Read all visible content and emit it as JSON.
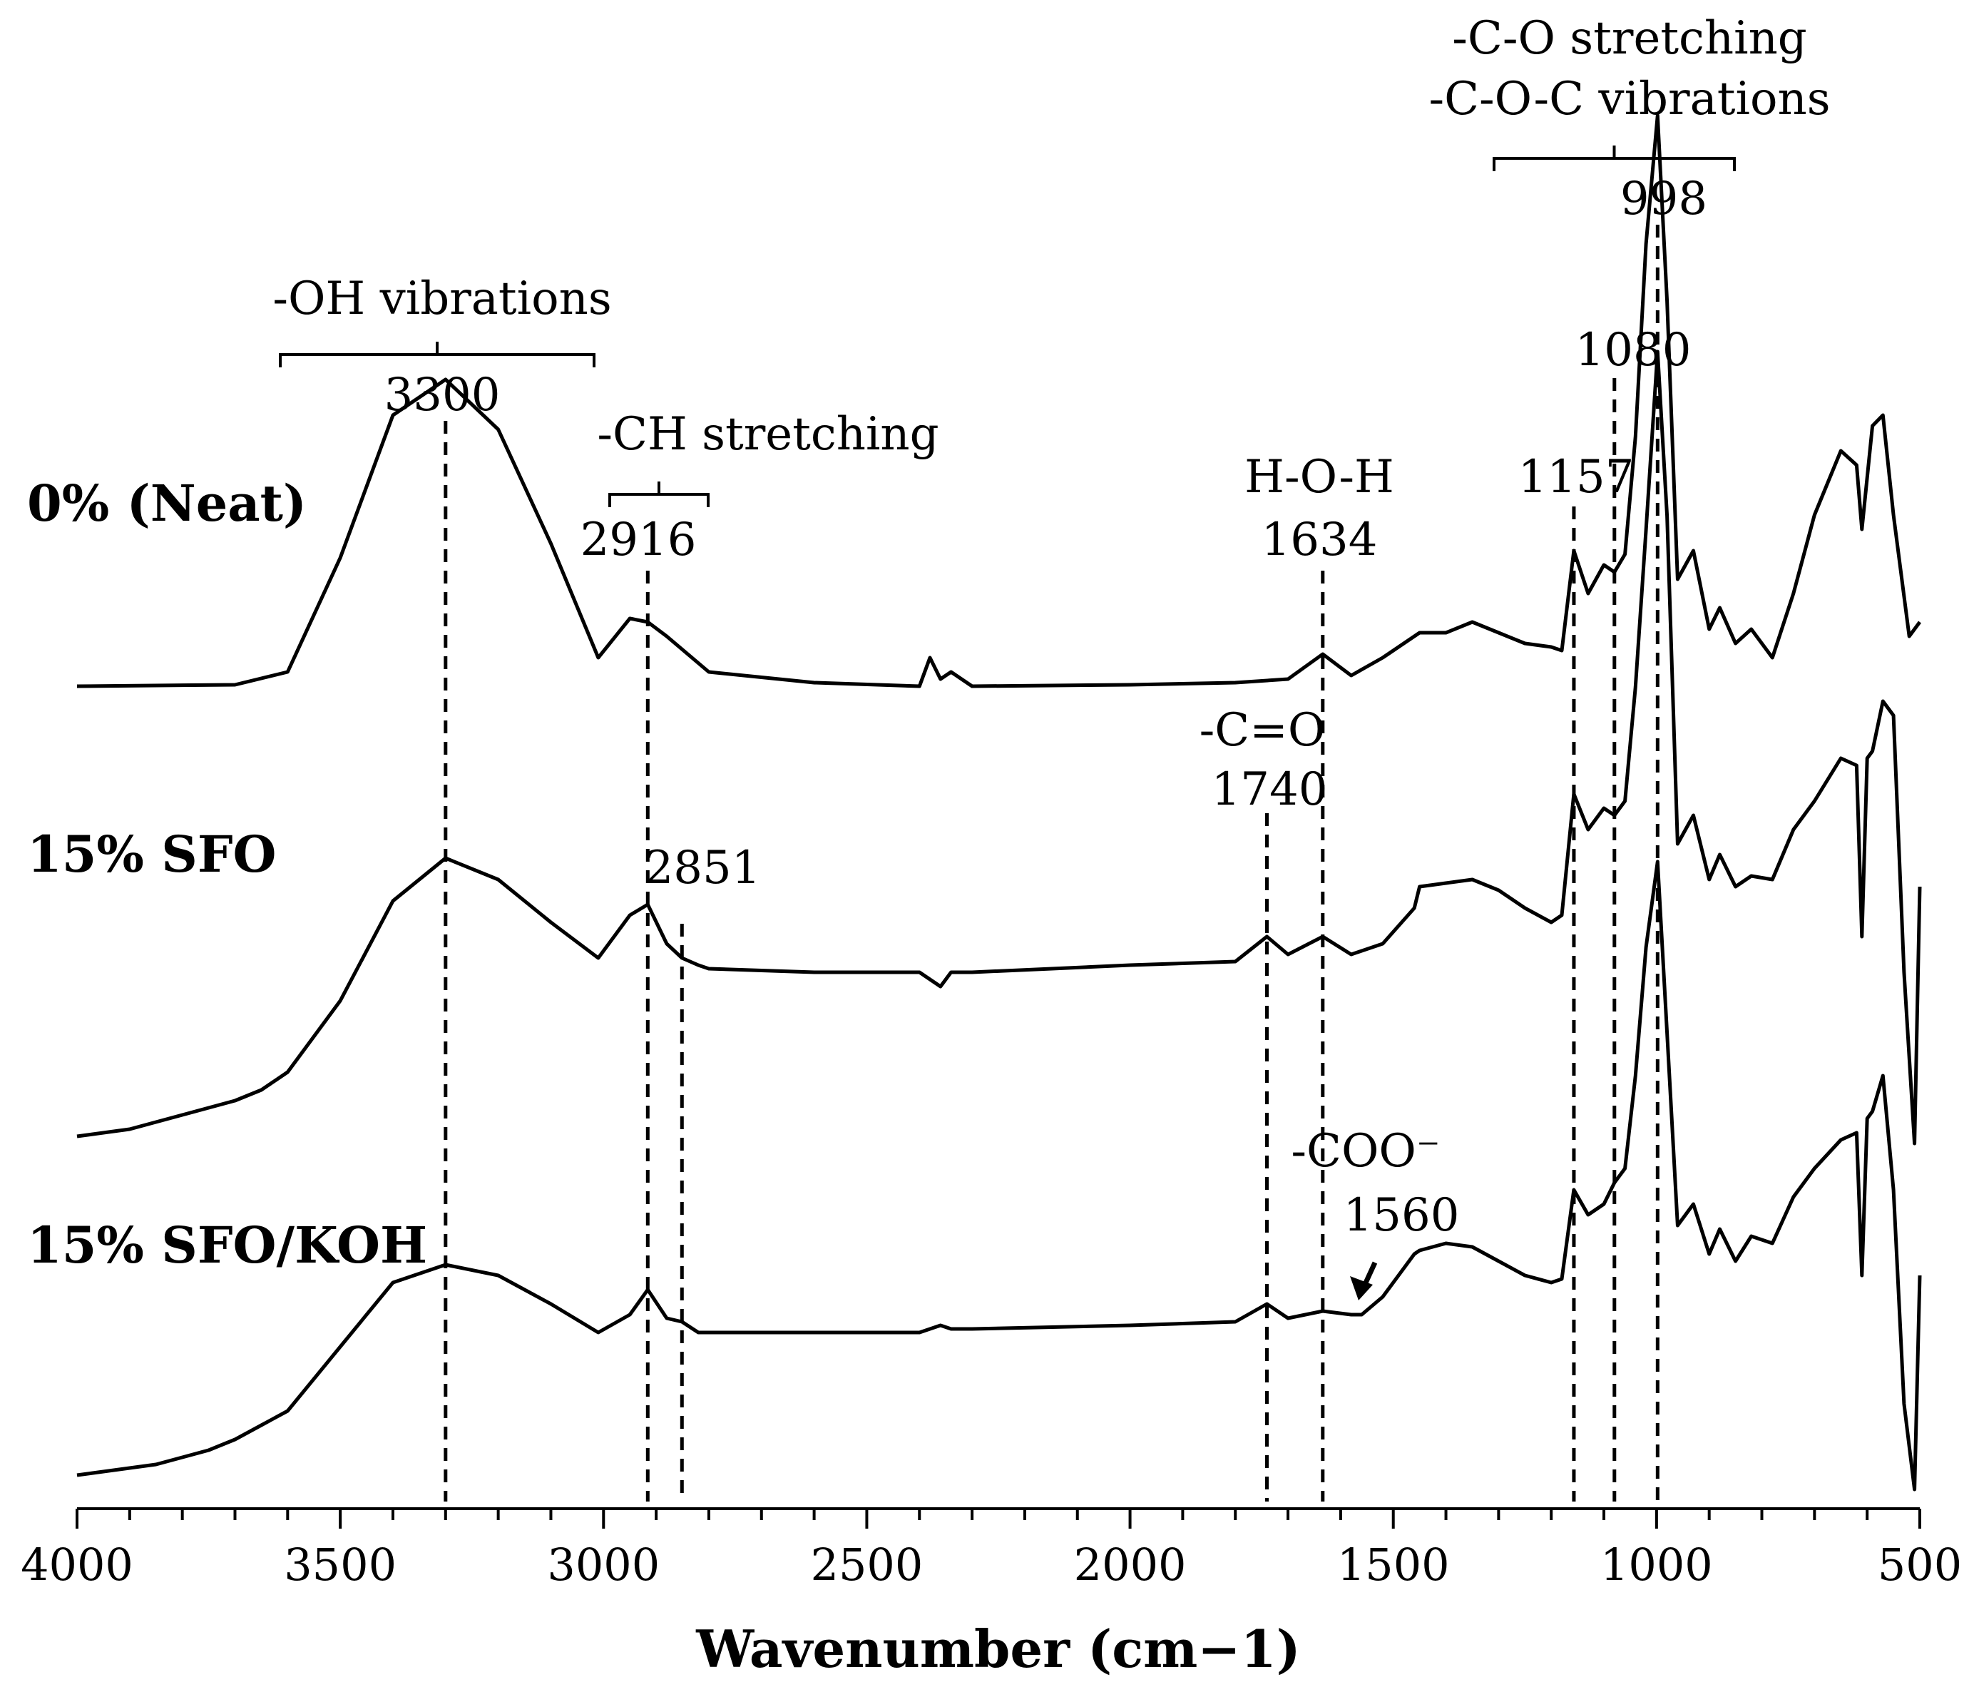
{
  "chart_data": {
    "type": "line",
    "title": "",
    "xlabel": "Wavenumber (cm−1)",
    "ylabel": "",
    "xlim": [
      4000,
      500
    ],
    "x_reversed": true,
    "x_ticks": [
      4000,
      3500,
      3000,
      2500,
      2000,
      1500,
      1000,
      500
    ],
    "x_tick_labels": [
      "4000",
      "3500",
      "3000",
      "2500",
      "2000",
      "1500",
      "1000",
      "500"
    ],
    "y_axis_visible": false,
    "grid": false,
    "legend": "inline",
    "series": [
      {
        "name": "0% (Neat)",
        "x": [
          4000,
          3700,
          3600,
          3500,
          3400,
          3300,
          3200,
          3100,
          3010,
          2950,
          2916,
          2880,
          2800,
          2600,
          2400,
          2380,
          2360,
          2340,
          2300,
          2000,
          1800,
          1700,
          1634,
          1580,
          1520,
          1460,
          1450,
          1400,
          1350,
          1300,
          1250,
          1200,
          1180,
          1157,
          1130,
          1100,
          1080,
          1060,
          1040,
          1020,
          998,
          980,
          960,
          930,
          900,
          880,
          850,
          820,
          780,
          740,
          700,
          650,
          620,
          610,
          590,
          570,
          550,
          520,
          500
        ],
        "y": [
          0,
          2,
          20,
          180,
          380,
          430,
          360,
          200,
          40,
          95,
          90,
          70,
          20,
          5,
          0,
          40,
          10,
          20,
          0,
          2,
          5,
          10,
          45,
          15,
          40,
          70,
          75,
          75,
          90,
          75,
          60,
          55,
          50,
          190,
          130,
          170,
          160,
          185,
          350,
          620,
          800,
          540,
          150,
          190,
          80,
          110,
          60,
          80,
          40,
          130,
          240,
          330,
          310,
          220,
          365,
          380,
          240,
          70,
          90
        ]
      },
      {
        "name": "15% SFO",
        "x": [
          4000,
          3950,
          3900,
          3850,
          3800,
          3750,
          3700,
          3650,
          3600,
          3500,
          3400,
          3300,
          3200,
          3100,
          3010,
          2950,
          2916,
          2880,
          2851,
          2820,
          2800,
          2600,
          2400,
          2360,
          2340,
          2300,
          2000,
          1800,
          1740,
          1700,
          1634,
          1580,
          1520,
          1460,
          1450,
          1400,
          1350,
          1300,
          1250,
          1200,
          1180,
          1157,
          1130,
          1100,
          1080,
          1060,
          1040,
          1020,
          998,
          980,
          960,
          930,
          900,
          880,
          850,
          820,
          780,
          740,
          700,
          650,
          620,
          610,
          600,
          590,
          570,
          550,
          530,
          510,
          500
        ],
        "y": [
          -230,
          -225,
          -220,
          -210,
          -200,
          -190,
          -180,
          -165,
          -140,
          -40,
          100,
          160,
          130,
          70,
          20,
          80,
          95,
          40,
          20,
          10,
          5,
          0,
          0,
          -20,
          0,
          0,
          10,
          15,
          50,
          25,
          50,
          25,
          40,
          90,
          120,
          125,
          130,
          115,
          90,
          70,
          80,
          250,
          200,
          230,
          220,
          240,
          400,
          620,
          870,
          640,
          180,
          220,
          130,
          165,
          120,
          135,
          130,
          200,
          240,
          300,
          290,
          50,
          300,
          310,
          380,
          360,
          0,
          -240,
          120
        ]
      },
      {
        "name": "15% SFO/KOH",
        "x": [
          4000,
          3950,
          3900,
          3850,
          3800,
          3750,
          3700,
          3650,
          3600,
          3500,
          3400,
          3300,
          3200,
          3100,
          3010,
          2950,
          2916,
          2880,
          2851,
          2820,
          2800,
          2600,
          2400,
          2360,
          2340,
          2300,
          2000,
          1800,
          1740,
          1700,
          1634,
          1580,
          1560,
          1520,
          1460,
          1450,
          1400,
          1350,
          1300,
          1250,
          1200,
          1180,
          1157,
          1130,
          1100,
          1080,
          1060,
          1040,
          1020,
          998,
          980,
          960,
          930,
          900,
          880,
          850,
          820,
          780,
          740,
          700,
          650,
          620,
          610,
          600,
          590,
          570,
          550,
          530,
          510,
          500
        ],
        "y": [
          -200,
          -195,
          -190,
          -185,
          -175,
          -165,
          -150,
          -130,
          -110,
          -20,
          70,
          95,
          80,
          40,
          0,
          25,
          60,
          20,
          15,
          0,
          0,
          0,
          0,
          10,
          5,
          5,
          10,
          15,
          40,
          20,
          30,
          25,
          25,
          50,
          110,
          115,
          125,
          120,
          100,
          80,
          70,
          75,
          200,
          165,
          180,
          210,
          230,
          360,
          540,
          660,
          420,
          150,
          180,
          110,
          145,
          100,
          135,
          125,
          190,
          230,
          270,
          280,
          80,
          300,
          310,
          360,
          200,
          -100,
          -220,
          80
        ]
      }
    ],
    "markers": [
      {
        "x": 3300,
        "label": "3300"
      },
      {
        "x": 2916,
        "label": "2916"
      },
      {
        "x": 2851,
        "label": "2851"
      },
      {
        "x": 1740,
        "label": "1740"
      },
      {
        "x": 1634,
        "label": "1634"
      },
      {
        "x": 1157,
        "label": "1157"
      },
      {
        "x": 1080,
        "label": "1080"
      },
      {
        "x": 998,
        "label": "998"
      }
    ],
    "annotations": {
      "oh": "-OH vibrations",
      "ch": "-CH stretching",
      "hoh": "H-O-H",
      "co_double": "-C=O",
      "coo": "-COO⁻",
      "coo_value": "1560",
      "co_stretch": "-C-O stretching",
      "coc_vib": "-C-O-C vibrations"
    }
  }
}
